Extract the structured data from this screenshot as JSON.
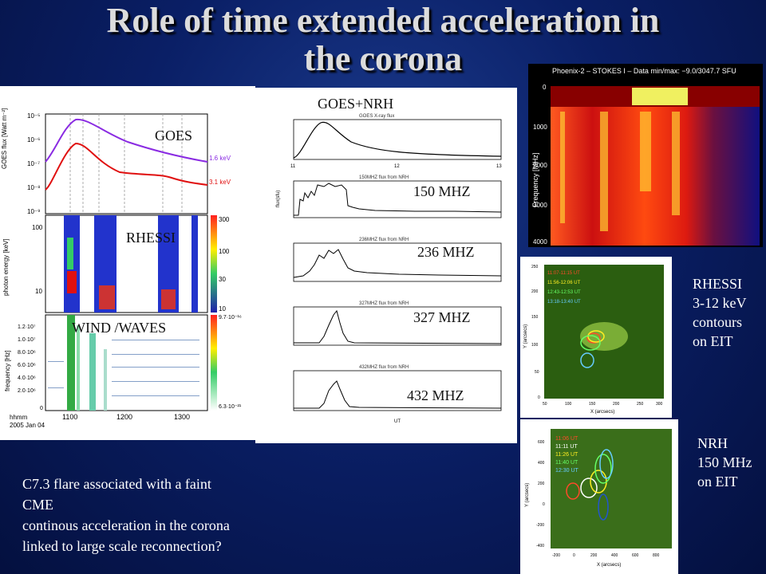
{
  "title": {
    "line1": "Role of time extended acceleration in",
    "line2": "the corona"
  },
  "left_panel": {
    "labels": {
      "goes": "GOES",
      "rhessi": "RHESSI",
      "wind": "WIND /WAVES"
    },
    "goes_axis": "GOES flux [Watt m⁻²]",
    "goes_ticks": [
      "10⁻⁵",
      "10⁻⁶",
      "10⁻⁷",
      "10⁻⁸",
      "10⁻⁹"
    ],
    "goes_legend": [
      "1.6 keV",
      "3.1 keV"
    ],
    "rhessi_axis": "photon energy [keV]",
    "rhessi_ticks": [
      "100",
      "10"
    ],
    "rhessi_colorbar": [
      "300",
      "100",
      "30",
      "10"
    ],
    "wind_axis": "frequency [Hz]",
    "wind_ticks": [
      "1.2·10⁷",
      "1.0·10⁷",
      "8.0·10⁶",
      "6.0·10⁶",
      "4.0·10⁶",
      "2.0·10⁶",
      "0"
    ],
    "wind_colorbar": [
      "9.7·10⁻¹⁶",
      "6.3·10⁻²¹"
    ],
    "time_ticks": [
      "1100",
      "1200",
      "1300"
    ],
    "time_label": "hhmm",
    "date_label": "2005 Jan 04"
  },
  "middle_panel": {
    "header": "GOES+NRH",
    "subplots": [
      {
        "title": "GOES X-ray flux",
        "label": ""
      },
      {
        "title": "150MHZ flux from NRH",
        "label": "150 MHZ"
      },
      {
        "title": "236MHZ flux from NRH",
        "label": "236 MHZ"
      },
      {
        "title": "327MHZ flux from NRH",
        "label": "327  MHZ"
      },
      {
        "title": "432MHZ flux from NRH",
        "label": "432 MHZ"
      }
    ],
    "x_ticks": [
      "11",
      "12",
      "13"
    ],
    "x_label": "UT",
    "y_label": "flux(sfu)"
  },
  "phoenix": {
    "title": "Phoenix-2 – STOKES I – Data min/max: −9.0/3047.7 SFU",
    "y_label": "Frequency [MHz]",
    "y_ticks": [
      "0",
      "1000",
      "2000",
      "3000",
      "4000"
    ]
  },
  "rhessi_eit": {
    "times": [
      "11:07-11:15 UT",
      "11:56-12:06 UT",
      "12:43-12:53 UT",
      "13:18-13:40 UT"
    ],
    "colors": [
      "#ff4a2a",
      "#ffee22",
      "#66ff66",
      "#66ccff"
    ],
    "x_label": "X (arcsecs)",
    "y_label": "Y (arcsecs)",
    "x_ticks": [
      "50",
      "100",
      "150",
      "200",
      "250",
      "300"
    ],
    "y_ticks": [
      "250",
      "200",
      "150",
      "100",
      "50",
      "0"
    ],
    "caption": [
      "RHESSI",
      "3-12 keV",
      "contours",
      "on EIT"
    ]
  },
  "nrh_eit": {
    "times": [
      "11:06 UT",
      "11:11 UT",
      "11:26 UT",
      "11:40 UT",
      "12:30 UT"
    ],
    "colors": [
      "#ff4a2a",
      "#ffffff",
      "#ffee22",
      "#66ff66",
      "#66ccff"
    ],
    "x_label": "X (arcsecs)",
    "y_label": "Y (arcsecs)",
    "x_ticks": [
      "-200",
      "0",
      "200",
      "400",
      "600",
      "800"
    ],
    "y_ticks": [
      "600",
      "400",
      "200",
      "0",
      "-200",
      "-400"
    ],
    "caption": [
      "NRH",
      "150 MHz",
      "on EIT"
    ]
  },
  "bottom_text": [
    "C7.3 flare associated with a faint",
    "CME",
    "continous acceleration in the corona",
    "linked to large scale reconnection?"
  ]
}
